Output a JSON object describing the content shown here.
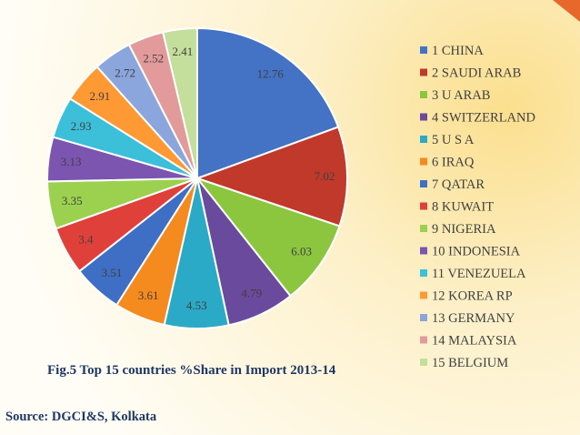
{
  "caption": "Fig.5 Top 15 countries  %Share in Import 2013-14",
  "source": "Source:  DGCI&S, Kolkata",
  "chart_data": {
    "type": "pie",
    "title": "Fig.5 Top 15 countries  %Share in Import 2013-14",
    "legend_position": "right",
    "slices": [
      {
        "label": "1 CHINA",
        "value": 12.76,
        "color": "#4472c4"
      },
      {
        "label": "2 SAUDI ARAB",
        "value": 7.02,
        "color": "#c0392b"
      },
      {
        "label": "3 U ARAB",
        "value": 6.03,
        "color": "#8cc63f"
      },
      {
        "label": "4 SWITZERLAND",
        "value": 4.79,
        "color": "#6a4a9c"
      },
      {
        "label": "5 U S A",
        "value": 4.53,
        "color": "#2aaac6"
      },
      {
        "label": "6 IRAQ",
        "value": 3.61,
        "color": "#f58a1f"
      },
      {
        "label": "7 QATAR",
        "value": 3.51,
        "color": "#3f6fc4"
      },
      {
        "label": "8 KUWAIT",
        "value": 3.4,
        "color": "#e0403a"
      },
      {
        "label": "9 NIGERIA",
        "value": 3.35,
        "color": "#9bd14f"
      },
      {
        "label": "10 INDONESIA",
        "value": 3.13,
        "color": "#7b55b0"
      },
      {
        "label": "11 VENEZUELA",
        "value": 2.93,
        "color": "#3cbfd9"
      },
      {
        "label": "12 KOREA RP",
        "value": 2.91,
        "color": "#ff9933"
      },
      {
        "label": "13 GERMANY",
        "value": 2.72,
        "color": "#8aa6dc"
      },
      {
        "label": "14 MALAYSIA",
        "value": 2.52,
        "color": "#e39a9a"
      },
      {
        "label": "15 BELGIUM",
        "value": 2.41,
        "color": "#c4de9b"
      }
    ]
  }
}
